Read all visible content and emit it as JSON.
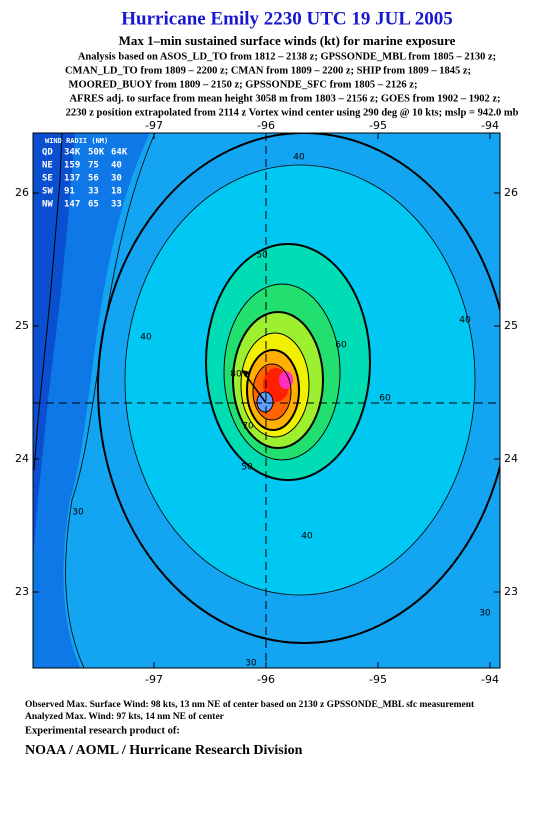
{
  "header": {
    "title": "Hurricane Emily 2230 UTC 19 JUL 2005",
    "subtitle": "Max 1–min sustained surface winds (kt) for marine exposure",
    "lines": [
      "Analysis based on  ASOS_LD_TO from 1812 – 2138 z;  GPSSONDE_MBL from 1805 – 2130 z;",
      "CMAN_LD_TO from 1809 – 2200 z;  CMAN from 1809 – 2200 z;  SHIP from 1809 – 1845 z;",
      "MOORED_BUOY from 1809 – 2150 z;  GPSSONDE_SFC from 1805 – 2126 z;",
      "AFRES adj. to surface from mean height 3058 m from 1803 – 2156 z;  GOES from 1902 – 1902 z;",
      "2230 z position extrapolated from 2114 z Vortex wind center using 290 deg @ 10 kts; mslp = 942.0 mb"
    ]
  },
  "map": {
    "lon_ticks": [
      -97,
      -96,
      -95,
      -94
    ],
    "lat_ticks": [
      26,
      25,
      24,
      23
    ],
    "contour_labels": [
      40,
      50,
      40,
      40,
      60,
      60,
      70,
      50,
      80,
      30,
      40,
      30,
      30
    ]
  },
  "wind_radii": {
    "title": "WIND RADII (NM)",
    "columns": [
      "QD",
      "34K",
      "50K",
      "64K"
    ],
    "rows": [
      [
        "NE",
        159,
        75,
        40
      ],
      [
        "SE",
        137,
        56,
        30
      ],
      [
        "SW",
        91,
        33,
        18
      ],
      [
        "NW",
        147,
        65,
        33
      ]
    ]
  },
  "footer": {
    "observed": "Observed Max. Surface Wind: 98 kts, 13 nm NE of center based on 2130 z GPSSONDE_MBL sfc measurement",
    "analyzed": "Analyzed Max. Wind: 97 kts, 14 nm NE of center",
    "experimental": "Experimental research product of:",
    "agency": "NOAA / AOML / Hurricane Research Division"
  }
}
